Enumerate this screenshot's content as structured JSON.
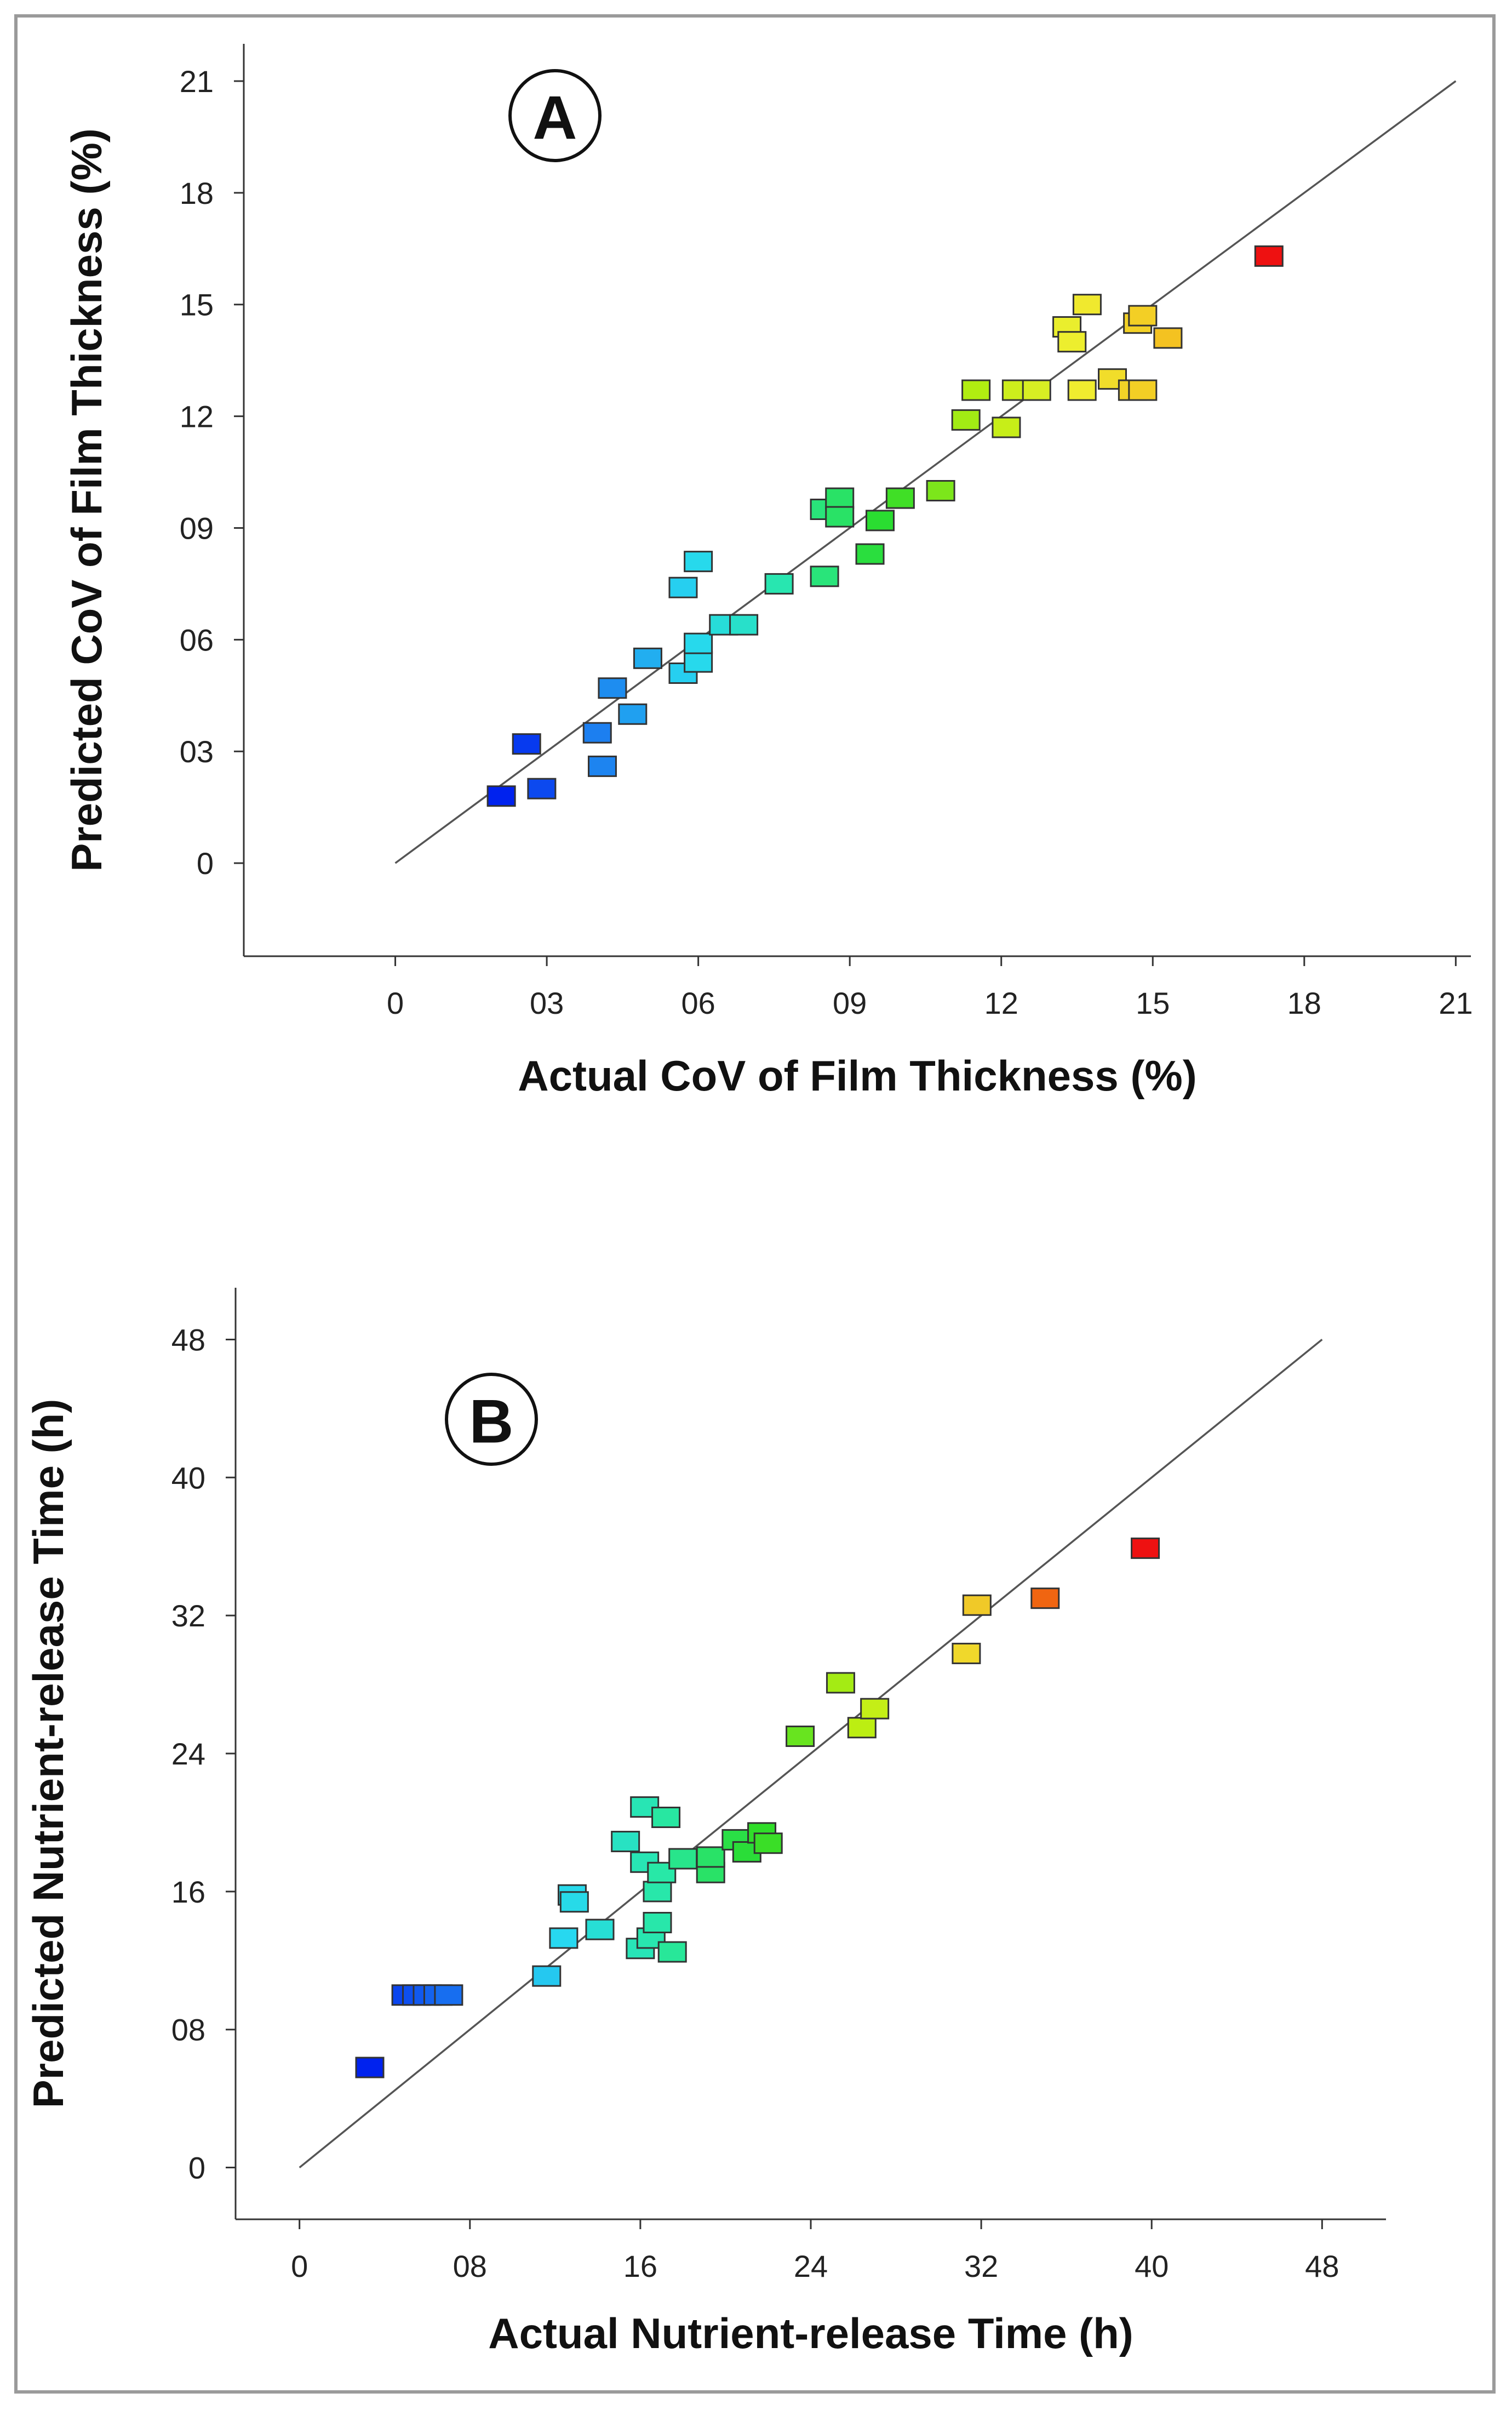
{
  "chart_data": [
    {
      "type": "scatter",
      "panel_label": "A",
      "xlabel": "Actual CoV of Film Thickness (%)",
      "ylabel": "Predicted CoV of Film Thickness (%)",
      "xlim": [
        -3,
        21.3
      ],
      "ylim": [
        -2.5,
        22
      ],
      "x_ticks": [
        0,
        3,
        6,
        9,
        12,
        15,
        18,
        21
      ],
      "x_tick_labels": [
        "0",
        "03",
        "06",
        "09",
        "12",
        "15",
        "18",
        "21"
      ],
      "y_ticks": [
        0,
        3,
        6,
        9,
        12,
        15,
        18,
        21
      ],
      "y_tick_labels": [
        "0",
        "03",
        "06",
        "09",
        "12",
        "15",
        "18",
        "21"
      ],
      "reference_line": [
        [
          0,
          0
        ],
        [
          21,
          21
        ]
      ],
      "color_scale": [
        "#0022ee",
        "#1c7ff0",
        "#27d8f0",
        "#28e8a8",
        "#2adc2a",
        "#b8ee10",
        "#f0ee30",
        "#f4c020",
        "#ee1111"
      ],
      "color_range": [
        2.1,
        17.3
      ],
      "points": [
        {
          "x": 2.1,
          "y": 1.8
        },
        {
          "x": 2.6,
          "y": 3.2
        },
        {
          "x": 2.9,
          "y": 2.0
        },
        {
          "x": 4.0,
          "y": 3.5
        },
        {
          "x": 4.1,
          "y": 2.6
        },
        {
          "x": 4.3,
          "y": 4.7
        },
        {
          "x": 4.7,
          "y": 4.0
        },
        {
          "x": 5.0,
          "y": 5.5
        },
        {
          "x": 5.7,
          "y": 7.4
        },
        {
          "x": 5.7,
          "y": 5.1
        },
        {
          "x": 6.0,
          "y": 8.1
        },
        {
          "x": 6.0,
          "y": 5.4
        },
        {
          "x": 6.0,
          "y": 5.9
        },
        {
          "x": 6.5,
          "y": 6.4
        },
        {
          "x": 6.9,
          "y": 6.4
        },
        {
          "x": 7.6,
          "y": 7.5
        },
        {
          "x": 8.5,
          "y": 7.7
        },
        {
          "x": 8.5,
          "y": 9.5
        },
        {
          "x": 8.8,
          "y": 9.8
        },
        {
          "x": 8.8,
          "y": 9.3
        },
        {
          "x": 9.4,
          "y": 8.3
        },
        {
          "x": 9.6,
          "y": 9.2
        },
        {
          "x": 10.0,
          "y": 9.8
        },
        {
          "x": 10.8,
          "y": 10.0
        },
        {
          "x": 11.3,
          "y": 11.9
        },
        {
          "x": 11.5,
          "y": 12.7
        },
        {
          "x": 12.1,
          "y": 11.7
        },
        {
          "x": 12.3,
          "y": 12.7
        },
        {
          "x": 12.7,
          "y": 12.7
        },
        {
          "x": 13.3,
          "y": 14.4
        },
        {
          "x": 13.4,
          "y": 14.0
        },
        {
          "x": 13.6,
          "y": 12.7
        },
        {
          "x": 13.7,
          "y": 15.0
        },
        {
          "x": 14.2,
          "y": 13.0
        },
        {
          "x": 14.6,
          "y": 12.7
        },
        {
          "x": 14.8,
          "y": 12.7
        },
        {
          "x": 14.7,
          "y": 14.5
        },
        {
          "x": 14.8,
          "y": 14.7
        },
        {
          "x": 15.3,
          "y": 14.1
        },
        {
          "x": 17.3,
          "y": 16.3
        }
      ]
    },
    {
      "type": "scatter",
      "panel_label": "B",
      "xlabel": "Actual Nutrient-release Time (h)",
      "ylabel": "Predicted Nutrient-release Time (h)",
      "xlim": [
        -3,
        51
      ],
      "ylim": [
        -3,
        51
      ],
      "x_ticks": [
        0,
        8,
        16,
        24,
        32,
        40,
        48
      ],
      "x_tick_labels": [
        "0",
        "08",
        "16",
        "24",
        "32",
        "40",
        "48"
      ],
      "y_ticks": [
        0,
        8,
        16,
        24,
        32,
        40,
        48
      ],
      "y_tick_labels": [
        "0",
        "08",
        "16",
        "24",
        "32",
        "40",
        "48"
      ],
      "reference_line": [
        [
          0,
          0
        ],
        [
          48,
          48
        ]
      ],
      "color_scale": [
        "#0022ee",
        "#1c7ff0",
        "#27d8f0",
        "#28e8a8",
        "#2adc2a",
        "#b8ee10",
        "#f0ee30",
        "#f06010",
        "#ee1111"
      ],
      "color_range": [
        3.3,
        39.7
      ],
      "points": [
        {
          "x": 3.3,
          "y": 5.8
        },
        {
          "x": 5.0,
          "y": 10.0
        },
        {
          "x": 5.5,
          "y": 10.0
        },
        {
          "x": 6.0,
          "y": 10.0
        },
        {
          "x": 6.5,
          "y": 10.0
        },
        {
          "x": 7.0,
          "y": 10.0
        },
        {
          "x": 11.6,
          "y": 11.1
        },
        {
          "x": 12.4,
          "y": 13.3
        },
        {
          "x": 12.8,
          "y": 15.8
        },
        {
          "x": 12.9,
          "y": 15.4
        },
        {
          "x": 14.1,
          "y": 13.8
        },
        {
          "x": 15.3,
          "y": 18.9
        },
        {
          "x": 16.0,
          "y": 12.7
        },
        {
          "x": 16.2,
          "y": 20.9
        },
        {
          "x": 16.2,
          "y": 17.7
        },
        {
          "x": 16.5,
          "y": 13.3
        },
        {
          "x": 16.8,
          "y": 14.2
        },
        {
          "x": 16.8,
          "y": 16.0
        },
        {
          "x": 17.0,
          "y": 17.1
        },
        {
          "x": 17.2,
          "y": 20.3
        },
        {
          "x": 17.5,
          "y": 12.5
        },
        {
          "x": 18.0,
          "y": 17.9
        },
        {
          "x": 19.3,
          "y": 17.1
        },
        {
          "x": 19.3,
          "y": 18.0
        },
        {
          "x": 20.5,
          "y": 19.0
        },
        {
          "x": 21.0,
          "y": 18.3
        },
        {
          "x": 21.7,
          "y": 19.4
        },
        {
          "x": 22.0,
          "y": 18.8
        },
        {
          "x": 23.5,
          "y": 25.0
        },
        {
          "x": 25.4,
          "y": 28.1
        },
        {
          "x": 26.4,
          "y": 25.5
        },
        {
          "x": 27.0,
          "y": 26.6
        },
        {
          "x": 31.3,
          "y": 29.8
        },
        {
          "x": 31.8,
          "y": 32.6
        },
        {
          "x": 35.0,
          "y": 33.0
        },
        {
          "x": 39.7,
          "y": 35.9
        }
      ]
    }
  ]
}
